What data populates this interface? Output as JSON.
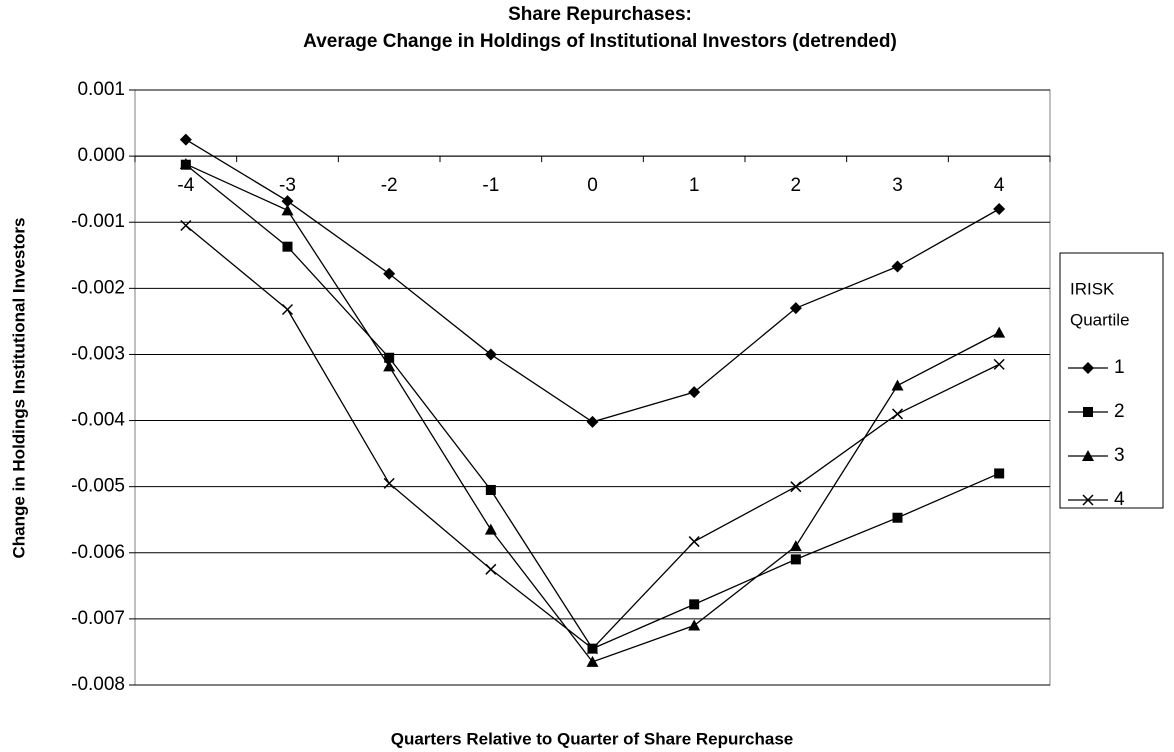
{
  "chart_data": {
    "type": "line",
    "title": "Share Repurchases:",
    "subtitle": "Average Change in Holdings of Institutional Investors (detrended)",
    "x_label": "Quarters Relative to Quarter of Share Repurchase",
    "y_label": "Change in Holdings Institutional Investors",
    "categories": [
      "-4",
      "-3",
      "-2",
      "-1",
      "0",
      "1",
      "2",
      "3",
      "4"
    ],
    "ylim": [
      -0.008,
      0.001
    ],
    "yticks": [
      0.001,
      {
        "value": 0,
        "label": "0.000"
      },
      -0.001,
      -0.002,
      -0.003,
      -0.004,
      -0.005,
      -0.006,
      -0.007,
      -0.008
    ],
    "grid": true,
    "legend_title": [
      "IRISK",
      "Quartile"
    ],
    "legend_position": "right",
    "series": [
      {
        "name": "1",
        "color": "#000000",
        "marker": "diamond",
        "values": [
          0.00025,
          -0.00068,
          -0.00178,
          -0.003,
          -0.00402,
          -0.00357,
          -0.0023,
          -0.00167,
          -0.0008
        ]
      },
      {
        "name": "2",
        "color": "#000000",
        "marker": "square",
        "values": [
          -0.00013,
          -0.00137,
          -0.00305,
          -0.00505,
          -0.00745,
          -0.00678,
          -0.0061,
          -0.00547,
          -0.0048
        ]
      },
      {
        "name": "3",
        "color": "#000000",
        "marker": "triangle",
        "values": [
          -0.00012,
          -0.00082,
          -0.00318,
          -0.00565,
          -0.00765,
          -0.0071,
          -0.0059,
          -0.00347,
          -0.00267
        ]
      },
      {
        "name": "4",
        "color": "#000000",
        "marker": "x",
        "values": [
          -0.00105,
          -0.00232,
          -0.00495,
          -0.00625,
          -0.00745,
          -0.00583,
          -0.005,
          -0.0039,
          -0.00315
        ]
      }
    ]
  }
}
